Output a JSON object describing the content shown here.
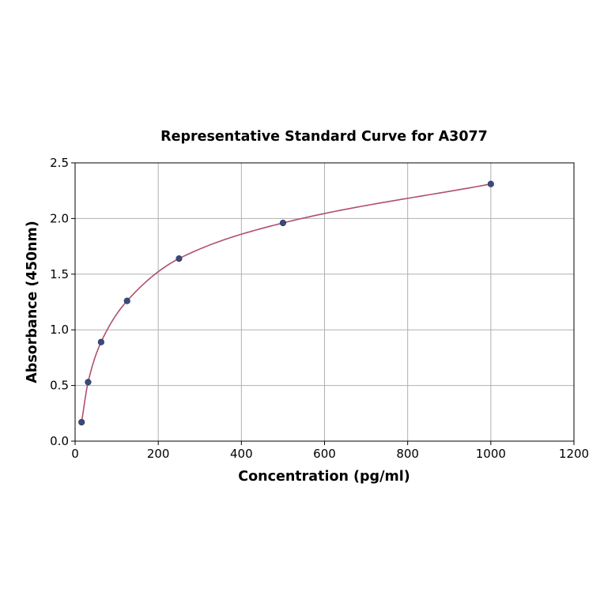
{
  "chart_data": {
    "type": "scatter",
    "title": "Representative Standard Curve for A3077",
    "xlabel": "Concentration (pg/ml)",
    "ylabel": "Absorbance (450nm)",
    "xlim": [
      0,
      1200
    ],
    "ylim": [
      0,
      2.5
    ],
    "xticks": [
      "0",
      "200",
      "400",
      "600",
      "800",
      "1000",
      "1200"
    ],
    "yticks": [
      "0.0",
      "0.5",
      "1.0",
      "1.5",
      "2.0",
      "2.5"
    ],
    "grid": true,
    "colors": {
      "points": "#3b4a78",
      "curve": "#b0506e"
    },
    "series": [
      {
        "points": [
          {
            "x": 15.6,
            "y": 0.17
          },
          {
            "x": 31.25,
            "y": 0.53
          },
          {
            "x": 62.5,
            "y": 0.89
          },
          {
            "x": 125,
            "y": 1.26
          },
          {
            "x": 250,
            "y": 1.64
          },
          {
            "x": 500,
            "y": 1.96
          },
          {
            "x": 1000,
            "y": 2.31
          }
        ]
      }
    ]
  }
}
